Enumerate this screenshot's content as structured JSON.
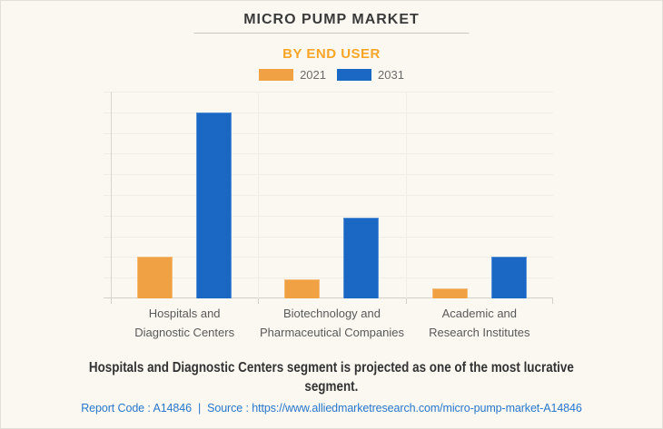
{
  "header": {
    "title": "MICRO PUMP MARKET",
    "subtitle": "BY END USER"
  },
  "colors": {
    "background": "#FAF8F1",
    "subtitle_orange": "#FAA527",
    "link_blue": "#2776CC",
    "series_2021_orange": "#F0A144",
    "series_2031_blue": "#1A67C4"
  },
  "chart_data": {
    "type": "bar",
    "title": "MICRO PUMP MARKET",
    "subtitle": "BY END USER",
    "categories": [
      "Hospitals and\nDiagnostic Centers",
      "Biotechnology and\nPharmaceutical Companies",
      "Academic and\nResearch Institutes"
    ],
    "series": [
      {
        "name": "2021",
        "color": "#F0A144",
        "values": [
          2.0,
          0.9,
          0.5
        ]
      },
      {
        "name": "2031",
        "color": "#1A67C4",
        "values": [
          9.0,
          3.9,
          2.0
        ]
      }
    ],
    "ylim": [
      0,
      10
    ],
    "gridlines": 10,
    "y_tick_labels_visible": false,
    "grid": "on",
    "legend_position": "top"
  },
  "caption": {
    "text": "Hospitals and Diagnostic Centers segment is projected as one of the most lucrative\nsegment."
  },
  "footer": {
    "report_code": "Report Code : A14846",
    "separator": "|",
    "source_label": "Source :",
    "source_url": "https://www.alliedmarketresearch.com/micro-pump-market-A14846"
  }
}
